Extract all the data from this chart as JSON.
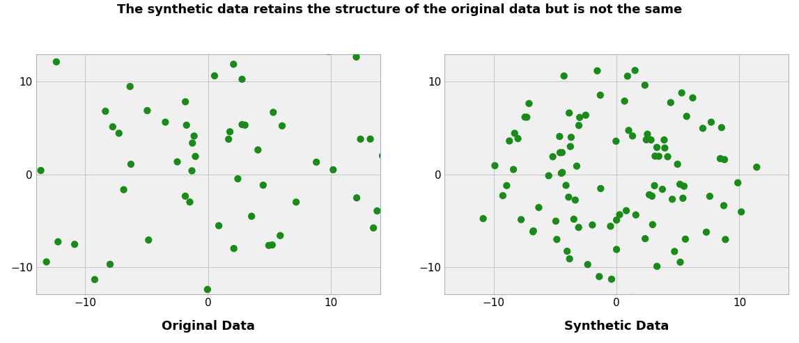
{
  "title": "The synthetic data retains the structure of the original data but is not the same",
  "left_label": "Original Data",
  "right_label": "Synthetic Data",
  "dot_color": "#1a8a1a",
  "dot_size": 55,
  "bg_color": "#ffffff",
  "grid_color": "#c8c8c8",
  "axis_bg_color": "#f0f0f0",
  "xlim": [
    -14,
    14
  ],
  "ylim": [
    -13,
    13
  ],
  "xticks": [
    -10,
    0,
    10
  ],
  "yticks": [
    -10,
    0,
    10
  ],
  "title_fontsize": 13,
  "label_fontsize": 13,
  "n_samples": 100,
  "noise_moons": 1.0,
  "noise_circles": 0.12,
  "scale_moons": 9.5,
  "scale_circles": 9.5
}
